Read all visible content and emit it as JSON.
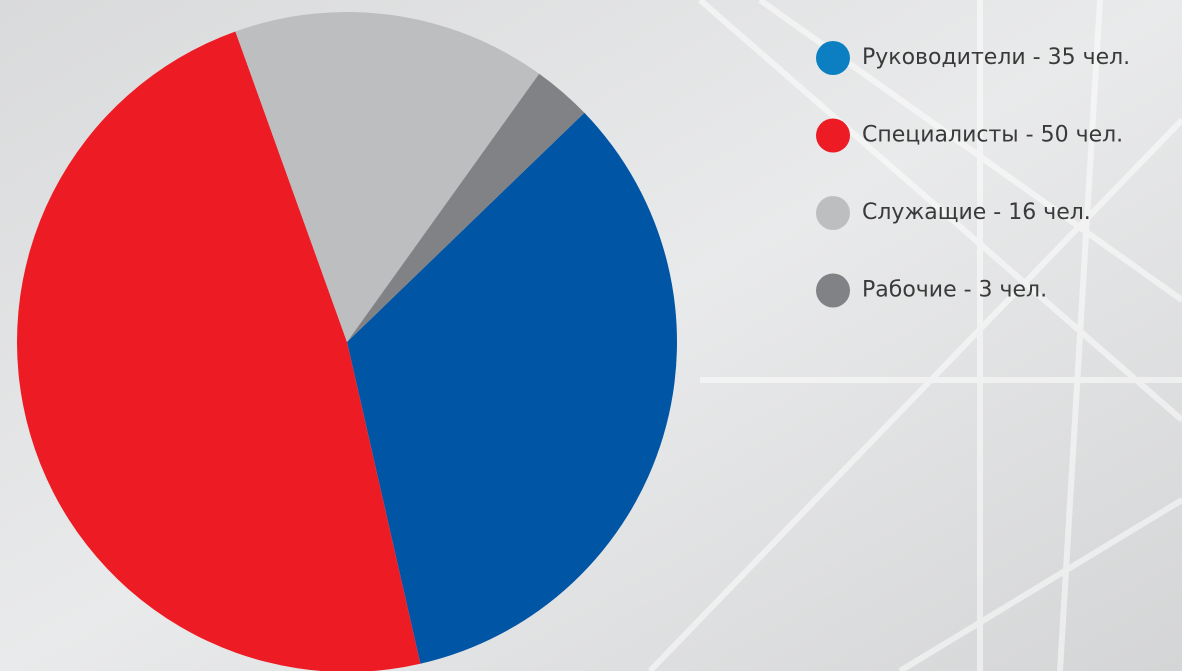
{
  "chart_data": {
    "type": "pie",
    "categories": [
      "Руководители - 35 чел.",
      "Специалисты - 50 чел.",
      "Служащие - 16 чел.",
      "Рабочие - 3 чел."
    ],
    "values": [
      35,
      50,
      16,
      3
    ],
    "colors": [
      "#0055a5",
      "#ed1c24",
      "#bcbec0",
      "#808285"
    ],
    "legend_colors": [
      "#0b7fc2",
      "#ed1c24",
      "#bcbec0",
      "#808285"
    ],
    "legend": "right"
  }
}
